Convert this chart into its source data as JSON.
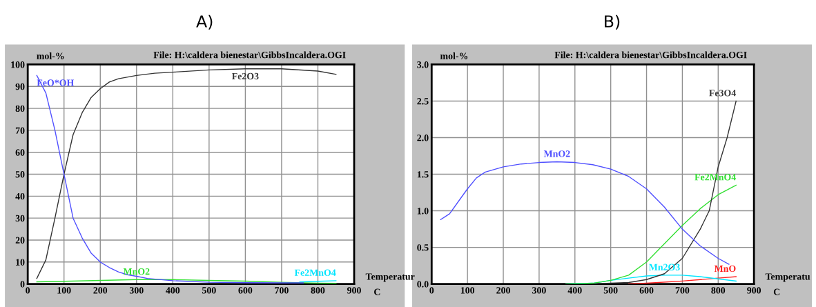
{
  "chart_data": [
    {
      "type": "line",
      "title": "A)",
      "ylabel": "mol-%",
      "xlabel": "Temperatur",
      "annotations": [
        "File: H:\\caldera bienestar\\GibbsIncaldera.OGI",
        "C"
      ],
      "xlim": [
        0,
        900
      ],
      "xticks": [
        0,
        100,
        200,
        300,
        400,
        500,
        600,
        700,
        800,
        900
      ],
      "ylim": [
        0,
        100
      ],
      "yticks": [
        0,
        10,
        20,
        30,
        40,
        50,
        60,
        70,
        80,
        90,
        100
      ],
      "grid": true,
      "legend": false,
      "marker": "none",
      "line_style": "solid",
      "series": [
        {
          "name": "FeO*OH",
          "color": "#5050ff",
          "x": [
            25,
            50,
            75,
            100,
            125,
            150,
            175,
            200,
            225,
            250,
            275,
            300,
            330,
            400,
            500,
            600,
            700,
            760
          ],
          "values": [
            95,
            87,
            70,
            50,
            30,
            21,
            14,
            10,
            7.5,
            5.5,
            4.2,
            3.5,
            2.5,
            1.5,
            0.8,
            0.6,
            0.5,
            0.5
          ]
        },
        {
          "name": "Fe2O3",
          "color": "#333333",
          "x": [
            25,
            50,
            75,
            100,
            125,
            150,
            175,
            200,
            225,
            250,
            300,
            350,
            400,
            500,
            600,
            700,
            800,
            850
          ],
          "values": [
            2.5,
            11,
            30,
            50,
            68,
            78,
            85,
            89,
            92,
            93.5,
            95,
            96,
            96.5,
            97.5,
            98,
            98,
            97,
            95.5
          ]
        },
        {
          "name": "MnO2",
          "color": "#33e033",
          "x": [
            25,
            100,
            200,
            300,
            400,
            500,
            600,
            700,
            800,
            850
          ],
          "values": [
            1,
            1.2,
            1.6,
            2,
            2,
            1.6,
            1.3,
            0.8,
            0.4,
            0.3
          ]
        },
        {
          "name": "Fe2MnO4",
          "color": "#00e5ff",
          "x": [
            750,
            800,
            850
          ],
          "values": [
            0.9,
            1.2,
            1.5
          ]
        }
      ]
    },
    {
      "type": "line",
      "title": "B)",
      "ylabel": "mol-%",
      "xlabel": "Temperatu",
      "annotations": [
        "File: H:\\caldera bienestar\\GibbsIncaldera.OGI",
        "C"
      ],
      "xlim": [
        0,
        900
      ],
      "xticks": [
        0,
        100,
        200,
        300,
        400,
        500,
        600,
        700,
        800,
        900
      ],
      "ylim": [
        0,
        3
      ],
      "yticks": [
        {
          "value": 0,
          "label": "0.0"
        },
        {
          "value": 0.5,
          "label": "0.5"
        },
        {
          "value": 1,
          "label": "1.0"
        },
        {
          "value": 1.5,
          "label": "1.5"
        },
        {
          "value": 2,
          "label": "2.0"
        },
        {
          "value": 2.5,
          "label": "2.5"
        },
        {
          "value": 3,
          "label": "3.0"
        }
      ],
      "grid": true,
      "legend": false,
      "marker": "none",
      "line_style": "solid",
      "series": [
        {
          "name": "MnO2",
          "color": "#5050ff",
          "x": [
            25,
            50,
            75,
            100,
            125,
            150,
            200,
            250,
            300,
            350,
            400,
            450,
            500,
            550,
            600,
            650,
            700,
            750,
            800,
            830
          ],
          "values": [
            0.88,
            0.96,
            1.13,
            1.3,
            1.45,
            1.53,
            1.6,
            1.64,
            1.66,
            1.67,
            1.66,
            1.63,
            1.57,
            1.47,
            1.3,
            1.05,
            0.75,
            0.52,
            0.35,
            0.27
          ]
        },
        {
          "name": "Fe3O4",
          "color": "#333333",
          "x": [
            450,
            500,
            550,
            600,
            650,
            700,
            750,
            775,
            800,
            825,
            850
          ],
          "values": [
            0,
            0.01,
            0.02,
            0.06,
            0.14,
            0.35,
            0.75,
            1.0,
            1.6,
            2.0,
            2.5
          ]
        },
        {
          "name": "Fe2MnO4",
          "color": "#33e033",
          "x": [
            375,
            450,
            500,
            550,
            600,
            650,
            700,
            750,
            800,
            850
          ],
          "values": [
            0,
            0.01,
            0.05,
            0.12,
            0.3,
            0.55,
            0.8,
            1.03,
            1.22,
            1.35
          ]
        },
        {
          "name": "Mn2O3",
          "color": "#00e5ff",
          "x": [
            375,
            450,
            500,
            550,
            600,
            650,
            700,
            750,
            800,
            850
          ],
          "values": [
            0,
            0.01,
            0.05,
            0.08,
            0.11,
            0.12,
            0.12,
            0.1,
            0.07,
            0.04
          ]
        },
        {
          "name": "MnO",
          "color": "#ff2020",
          "x": [
            550,
            600,
            700,
            800,
            850
          ],
          "values": [
            0,
            0.01,
            0.04,
            0.08,
            0.1
          ]
        }
      ]
    }
  ]
}
